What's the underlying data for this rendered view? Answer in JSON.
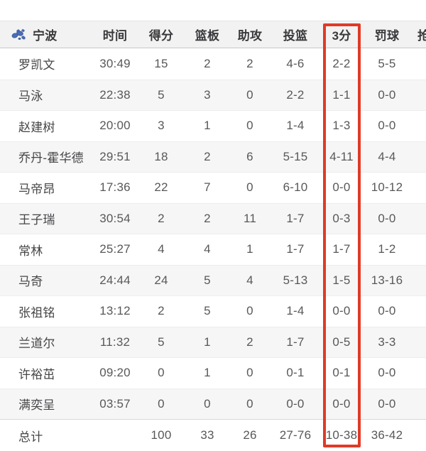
{
  "team": {
    "name": "宁波"
  },
  "columns": [
    {
      "key": "time",
      "label": "时间"
    },
    {
      "key": "points",
      "label": "得分"
    },
    {
      "key": "rebounds",
      "label": "篮板"
    },
    {
      "key": "assists",
      "label": "助攻"
    },
    {
      "key": "fg",
      "label": "投篮"
    },
    {
      "key": "threes",
      "label": "3分"
    },
    {
      "key": "ft",
      "label": "罚球"
    },
    {
      "key": "clipped",
      "label": "抢"
    }
  ],
  "players": [
    {
      "name": "罗凯文",
      "time": "30:49",
      "points": "15",
      "rebounds": "2",
      "assists": "2",
      "fg": "4-6",
      "threes": "2-2",
      "ft": "5-5"
    },
    {
      "name": "马泳",
      "time": "22:38",
      "points": "5",
      "rebounds": "3",
      "assists": "0",
      "fg": "2-2",
      "threes": "1-1",
      "ft": "0-0"
    },
    {
      "name": "赵建树",
      "time": "20:00",
      "points": "3",
      "rebounds": "1",
      "assists": "0",
      "fg": "1-4",
      "threes": "1-3",
      "ft": "0-0"
    },
    {
      "name": "乔丹-霍华德",
      "time": "29:51",
      "points": "18",
      "rebounds": "2",
      "assists": "6",
      "fg": "5-15",
      "threes": "4-11",
      "ft": "4-4"
    },
    {
      "name": "马帝昂",
      "time": "17:36",
      "points": "22",
      "rebounds": "7",
      "assists": "0",
      "fg": "6-10",
      "threes": "0-0",
      "ft": "10-12"
    },
    {
      "name": "王子瑞",
      "time": "30:54",
      "points": "2",
      "rebounds": "2",
      "assists": "11",
      "fg": "1-7",
      "threes": "0-3",
      "ft": "0-0"
    },
    {
      "name": "常林",
      "time": "25:27",
      "points": "4",
      "rebounds": "4",
      "assists": "1",
      "fg": "1-7",
      "threes": "1-7",
      "ft": "1-2"
    },
    {
      "name": "马奇",
      "time": "24:44",
      "points": "24",
      "rebounds": "5",
      "assists": "4",
      "fg": "5-13",
      "threes": "1-5",
      "ft": "13-16"
    },
    {
      "name": "张祖铭",
      "time": "13:12",
      "points": "2",
      "rebounds": "5",
      "assists": "0",
      "fg": "1-4",
      "threes": "0-0",
      "ft": "0-0"
    },
    {
      "name": "兰道尔",
      "time": "11:32",
      "points": "5",
      "rebounds": "1",
      "assists": "2",
      "fg": "1-7",
      "threes": "0-5",
      "ft": "3-3"
    },
    {
      "name": "许裕茁",
      "time": "09:20",
      "points": "0",
      "rebounds": "1",
      "assists": "0",
      "fg": "0-1",
      "threes": "0-1",
      "ft": "0-0"
    },
    {
      "name": "满奕呈",
      "time": "03:57",
      "points": "0",
      "rebounds": "0",
      "assists": "0",
      "fg": "0-0",
      "threes": "0-0",
      "ft": "0-0"
    }
  ],
  "totals": {
    "name": "总计",
    "time": "",
    "points": "100",
    "rebounds": "33",
    "assists": "26",
    "fg": "27-76",
    "threes": "10-38",
    "ft": "36-42"
  },
  "highlight": {
    "column_label": "3分",
    "color": "#e03a26"
  },
  "colors": {
    "header_bg": "#f2f2f3",
    "stripe_bg": "#f6f6f7",
    "header_text": "#39393b",
    "body_text": "#58585a",
    "logo_blue": "#4a6db5"
  }
}
